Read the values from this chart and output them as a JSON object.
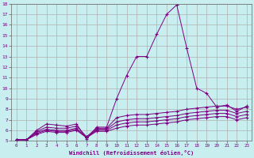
{
  "xlabel": "Windchill (Refroidissement éolien,°C)",
  "bg_color": "#c8eef0",
  "line_color": "#7b0082",
  "grid_color": "#b0b0b0",
  "xlim": [
    -0.5,
    23.5
  ],
  "ylim": [
    5,
    18
  ],
  "xticks": [
    0,
    1,
    2,
    3,
    4,
    5,
    6,
    7,
    8,
    9,
    10,
    11,
    12,
    13,
    14,
    15,
    16,
    17,
    18,
    19,
    20,
    21,
    22,
    23
  ],
  "yticks": [
    5,
    6,
    7,
    8,
    9,
    10,
    11,
    12,
    13,
    14,
    15,
    16,
    17,
    18
  ],
  "lines": [
    {
      "x": [
        0,
        1,
        2,
        3,
        4,
        5,
        6,
        7,
        8,
        9,
        10,
        11,
        12,
        13,
        14,
        15,
        16,
        17,
        18,
        19,
        20,
        21,
        22,
        23
      ],
      "y": [
        5.1,
        5.1,
        6.0,
        6.6,
        6.5,
        6.4,
        6.6,
        5.2,
        6.3,
        6.3,
        9.0,
        11.2,
        13.0,
        13.0,
        15.1,
        17.0,
        17.9,
        13.8,
        10.0,
        9.5,
        8.2,
        8.4,
        7.8,
        8.3
      ]
    },
    {
      "x": [
        0,
        1,
        2,
        3,
        4,
        5,
        6,
        7,
        8,
        9,
        10,
        11,
        12,
        13,
        14,
        15,
        16,
        17,
        18,
        19,
        20,
        21,
        22,
        23
      ],
      "y": [
        5.1,
        5.1,
        5.9,
        6.3,
        6.2,
        6.2,
        6.4,
        5.4,
        6.2,
        6.2,
        7.2,
        7.4,
        7.5,
        7.5,
        7.6,
        7.7,
        7.8,
        8.0,
        8.1,
        8.2,
        8.3,
        8.3,
        8.0,
        8.2
      ]
    },
    {
      "x": [
        0,
        1,
        2,
        3,
        4,
        5,
        6,
        7,
        8,
        9,
        10,
        11,
        12,
        13,
        14,
        15,
        16,
        17,
        18,
        19,
        20,
        21,
        22,
        23
      ],
      "y": [
        5.1,
        5.1,
        5.8,
        6.1,
        6.0,
        6.0,
        6.2,
        5.3,
        6.1,
        6.1,
        6.8,
        7.0,
        7.1,
        7.1,
        7.2,
        7.3,
        7.4,
        7.6,
        7.7,
        7.8,
        7.9,
        7.9,
        7.6,
        7.8
      ]
    },
    {
      "x": [
        0,
        1,
        2,
        3,
        4,
        5,
        6,
        7,
        8,
        9,
        10,
        11,
        12,
        13,
        14,
        15,
        16,
        17,
        18,
        19,
        20,
        21,
        22,
        23
      ],
      "y": [
        5.1,
        5.1,
        5.7,
        6.0,
        5.9,
        5.9,
        6.1,
        5.3,
        6.0,
        6.0,
        6.5,
        6.7,
        6.8,
        6.8,
        6.9,
        7.0,
        7.1,
        7.3,
        7.4,
        7.5,
        7.6,
        7.6,
        7.3,
        7.5
      ]
    },
    {
      "x": [
        0,
        1,
        2,
        3,
        4,
        5,
        6,
        7,
        8,
        9,
        10,
        11,
        12,
        13,
        14,
        15,
        16,
        17,
        18,
        19,
        20,
        21,
        22,
        23
      ],
      "y": [
        5.1,
        5.1,
        5.6,
        5.9,
        5.8,
        5.8,
        6.0,
        5.3,
        5.9,
        5.9,
        6.2,
        6.4,
        6.5,
        6.5,
        6.6,
        6.7,
        6.8,
        7.0,
        7.1,
        7.2,
        7.3,
        7.3,
        7.0,
        7.2
      ]
    }
  ]
}
